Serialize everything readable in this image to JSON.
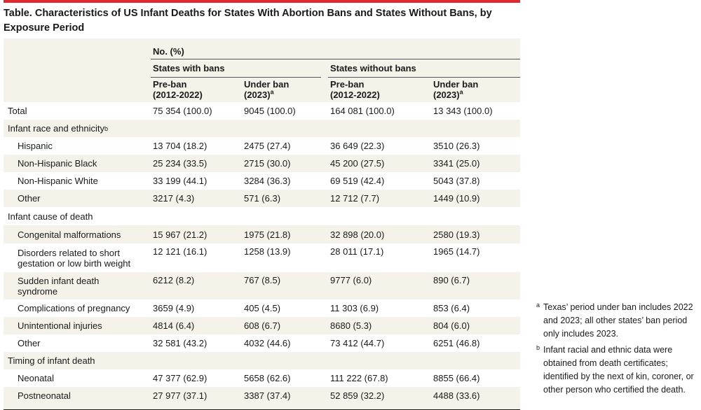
{
  "title": "Table. Characteristics of US Infant Deaths for States With Abortion Bans and States Without Bans, by Exposure Period",
  "header": {
    "unit": "No. (%)",
    "group1": "States with bans",
    "group2": "States without bans",
    "col1_line1": "Pre-ban",
    "col1_line2": "(2012-2022)",
    "col2_line1": "Under ban",
    "col2_line2": "(2023)",
    "col2_mark": "a",
    "col3_line1": "Pre-ban",
    "col3_line2": "(2012-2022)",
    "col4_line1": "Under ban",
    "col4_line2": "(2023)",
    "col4_mark": "a"
  },
  "rows": [
    {
      "label": "Total",
      "v": [
        "75 354 (100.0)",
        "9045 (100.0)",
        "164 081 (100.0)",
        "13 343 (100.0)"
      ]
    },
    {
      "label": "Infant race and ethnicity",
      "mark": "b"
    },
    {
      "label": "Hispanic",
      "v": [
        "13 704 (18.2)",
        "2475 (27.4)",
        "36 649 (22.3)",
        "3510 (26.3)"
      ]
    },
    {
      "label": "Non-Hispanic Black",
      "v": [
        "25 234 (33.5)",
        "2715 (30.0)",
        "45 200 (27.5)",
        "3341 (25.0)"
      ]
    },
    {
      "label": "Non-Hispanic White",
      "v": [
        "33 199 (44.1)",
        "3284 (36.3)",
        "69 519 (42.4)",
        "5043 (37.8)"
      ]
    },
    {
      "label": "Other",
      "v": [
        "3217 (4.3)",
        "571 (6.3)",
        "12 712 (7.7)",
        "1449 (10.9)"
      ]
    },
    {
      "label": "Infant cause of death"
    },
    {
      "label": "Congenital malformations",
      "v": [
        "15 967 (21.2)",
        "1975 (21.8)",
        "32 898 (20.0)",
        "2580 (19.3)"
      ]
    },
    {
      "label_line1": "Disorders related to short",
      "label_line2": "gestation or low birth weight",
      "v": [
        "12 121 (16.1)",
        "1258 (13.9)",
        "28 011 (17.1)",
        "1965 (14.7)"
      ]
    },
    {
      "label_line1": "Sudden infant death",
      "label_line2": "syndrome",
      "v": [
        "6212 (8.2)",
        "767 (8.5)",
        "9777 (6.0)",
        "890 (6.7)"
      ]
    },
    {
      "label": "Complications of pregnancy",
      "v": [
        "3659 (4.9)",
        "405 (4.5)",
        "11 303 (6.9)",
        "853 (6.4)"
      ]
    },
    {
      "label": "Unintentional injuries",
      "v": [
        "4814 (6.4)",
        "608 (6.7)",
        "8680 (5.3)",
        "804 (6.0)"
      ]
    },
    {
      "label": "Other",
      "v": [
        "32 581 (43.2)",
        "4032 (44.6)",
        "73 412 (44.7)",
        "6251 (46.8)"
      ]
    },
    {
      "label": "Timing of infant death"
    },
    {
      "label": "Neonatal",
      "v": [
        "47 377 (62.9)",
        "5658 (62.6)",
        "111 222 (67.8)",
        "8855 (66.4)"
      ]
    },
    {
      "label": "Postneonatal",
      "v": [
        "27 977 (37.1)",
        "3387 (37.4)",
        "52 859 (32.2)",
        "4488 (33.6)"
      ]
    }
  ],
  "footnotes": [
    {
      "mark": "a",
      "text": "Texas’ period under ban includes 2022 and 2023; all other states’ ban period only includes 2023."
    },
    {
      "mark": "b",
      "text": "Infant racial and ethnic data were obtained from death certificates; identified by the next of kin, coroner, or other person who certified the death."
    }
  ],
  "colors": {
    "accent": "#e0282e",
    "band": "#f4f2e9",
    "text": "#1a1a1a"
  }
}
